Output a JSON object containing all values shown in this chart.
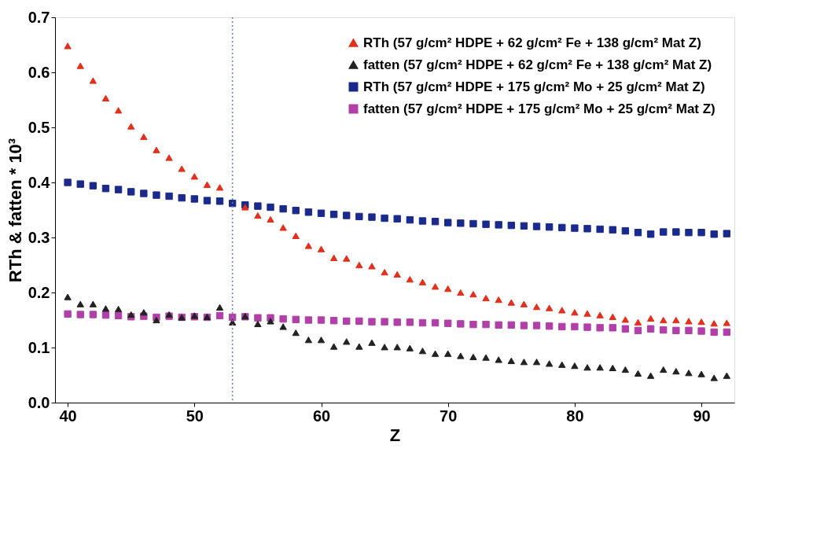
{
  "chart_data": {
    "type": "scatter",
    "xlabel": "Z",
    "ylabel": "RTh & fatten * 10³",
    "x": [
      40,
      41,
      42,
      43,
      44,
      45,
      46,
      47,
      48,
      49,
      50,
      51,
      52,
      53,
      54,
      55,
      56,
      57,
      58,
      59,
      60,
      61,
      62,
      63,
      64,
      65,
      66,
      67,
      68,
      69,
      70,
      71,
      72,
      73,
      74,
      75,
      76,
      77,
      78,
      79,
      80,
      81,
      82,
      83,
      84,
      85,
      86,
      87,
      88,
      89,
      90,
      91,
      92
    ],
    "series": [
      {
        "name": "RTh (57 g/cm² HDPE + 62 g/cm² Fe + 138 g/cm² Mat Z)",
        "color": "#e0301e",
        "marker": "triangle",
        "values": [
          0.648,
          0.612,
          0.585,
          0.553,
          0.531,
          0.502,
          0.483,
          0.459,
          0.445,
          0.425,
          0.411,
          0.396,
          0.391,
          null,
          0.355,
          0.34,
          0.333,
          0.318,
          0.303,
          0.285,
          0.279,
          0.263,
          0.262,
          0.25,
          0.248,
          0.237,
          0.233,
          0.224,
          0.219,
          0.211,
          0.207,
          0.2,
          0.197,
          0.19,
          0.187,
          0.182,
          0.179,
          0.174,
          0.172,
          0.168,
          0.164,
          0.162,
          0.159,
          0.156,
          0.151,
          0.146,
          0.153,
          0.15,
          0.15,
          0.148,
          0.147,
          0.144,
          0.145
        ]
      },
      {
        "name": "fatten (57 g/cm² HDPE + 62 g/cm² Fe + 138 g/cm² Mat Z)",
        "color": "#222222",
        "marker": "triangle",
        "values": [
          0.192,
          0.179,
          0.179,
          0.171,
          0.17,
          0.16,
          0.164,
          0.15,
          0.16,
          0.155,
          0.158,
          0.156,
          0.173,
          0.146,
          0.157,
          0.143,
          0.148,
          0.138,
          0.127,
          0.114,
          0.114,
          0.102,
          0.111,
          0.102,
          0.109,
          0.101,
          0.101,
          0.099,
          0.094,
          0.089,
          0.089,
          0.085,
          0.083,
          0.082,
          0.078,
          0.076,
          0.074,
          0.074,
          0.071,
          0.069,
          0.067,
          0.064,
          0.064,
          0.063,
          0.06,
          0.053,
          0.049,
          0.06,
          0.057,
          0.054,
          0.052,
          0.045,
          0.049
        ]
      },
      {
        "name": "RTh (57 g/cm² HDPE + 175 g/cm² Mo + 25 g/cm² Mat Z)",
        "color": "#1a2a8a",
        "marker": "square",
        "values": [
          0.4,
          0.397,
          0.394,
          0.389,
          0.387,
          0.383,
          0.38,
          0.377,
          0.375,
          0.372,
          0.37,
          0.367,
          0.366,
          0.362,
          0.359,
          0.357,
          0.355,
          0.352,
          0.349,
          0.346,
          0.344,
          0.342,
          0.34,
          0.338,
          0.337,
          0.335,
          0.334,
          0.332,
          0.33,
          0.329,
          0.327,
          0.326,
          0.325,
          0.324,
          0.323,
          0.322,
          0.321,
          0.32,
          0.319,
          0.318,
          0.317,
          0.316,
          0.315,
          0.314,
          0.312,
          0.309,
          0.306,
          0.31,
          0.31,
          0.309,
          0.309,
          0.306,
          0.307
        ]
      },
      {
        "name": "fatten (57 g/cm² HDPE + 175 g/cm² Mo + 25 g/cm² Mat Z)",
        "color": "#b040a8",
        "marker": "square",
        "values": [
          0.161,
          0.16,
          0.16,
          0.159,
          0.158,
          0.156,
          0.157,
          0.155,
          0.157,
          0.155,
          0.156,
          0.155,
          0.158,
          0.155,
          0.156,
          0.154,
          0.154,
          0.152,
          0.151,
          0.15,
          0.15,
          0.149,
          0.148,
          0.148,
          0.147,
          0.147,
          0.146,
          0.146,
          0.145,
          0.145,
          0.144,
          0.143,
          0.142,
          0.142,
          0.141,
          0.141,
          0.14,
          0.14,
          0.139,
          0.138,
          0.138,
          0.137,
          0.136,
          0.136,
          0.134,
          0.131,
          0.134,
          0.132,
          0.131,
          0.131,
          0.13,
          0.128,
          0.128
        ]
      }
    ],
    "xlim": [
      39,
      92.6
    ],
    "xticks": [
      40,
      50,
      60,
      70,
      80,
      90
    ],
    "ylim": [
      0,
      0.7
    ],
    "yticks": [
      {
        "value": 0,
        "label": "0.0"
      },
      0.1,
      0.2,
      0.3,
      0.4,
      0.5,
      0.6,
      0.7
    ],
    "ref_lines": [
      {
        "axis": "x",
        "value": 53,
        "label": null,
        "color": "#7080a0",
        "line_style": "dotted"
      }
    ],
    "grid": false,
    "legend": "top right"
  }
}
